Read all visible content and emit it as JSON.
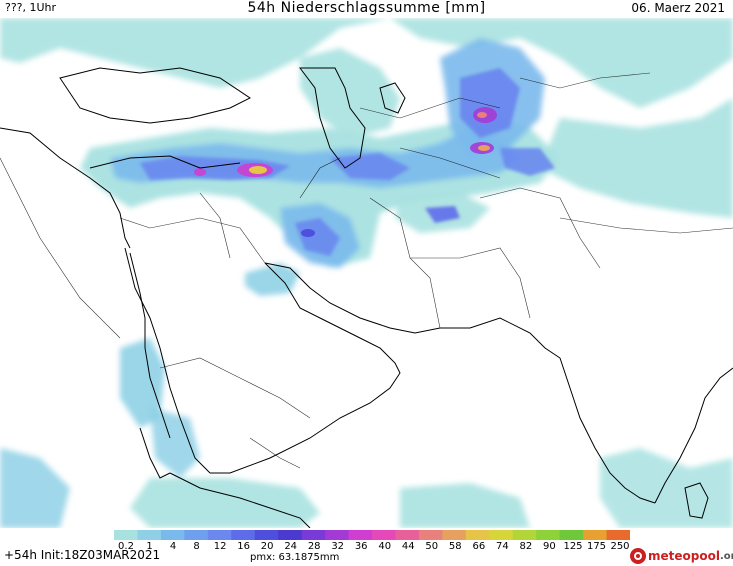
{
  "header": {
    "left": "???, 1Uhr",
    "title": "54h Niederschlagssumme [mm]",
    "date": "06. Maerz 2021"
  },
  "legend": {
    "ticks": [
      "0.2",
      "1",
      "4",
      "8",
      "12",
      "16",
      "20",
      "24",
      "28",
      "32",
      "36",
      "40",
      "44",
      "50",
      "58",
      "66",
      "74",
      "82",
      "90",
      "125",
      "175",
      "250"
    ],
    "colors": [
      "#a8e2e0",
      "#8fd0e6",
      "#7ab9ec",
      "#6ea0ee",
      "#6a88ee",
      "#5e6cea",
      "#4f4fde",
      "#4a3ad0",
      "#7a3ad8",
      "#a43ad6",
      "#cf3ed0",
      "#e548b8",
      "#e7609a",
      "#e8807c",
      "#e6a060",
      "#e6c448",
      "#d6d63a",
      "#b2d63a",
      "#8ed23a",
      "#6ec83a",
      "#e8a030",
      "#e86a2c"
    ]
  },
  "footer": {
    "run": "+54h Init:18Z03MAR2021",
    "pmx": "pmx: 63.1875mm",
    "logo_main": "meteopool",
    "logo_suffix": ".org"
  }
}
